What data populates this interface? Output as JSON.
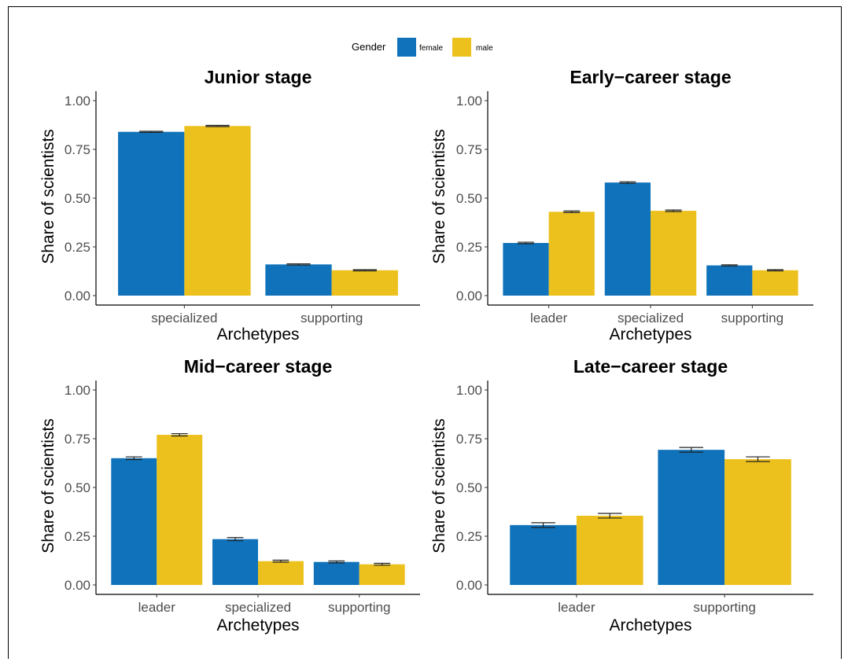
{
  "legend": {
    "title": "Gender",
    "entries": [
      {
        "label": "female",
        "color": "#0F72BA"
      },
      {
        "label": "male",
        "color": "#EDC11D"
      }
    ]
  },
  "chart_data": [
    {
      "type": "bar",
      "title": "Junior stage",
      "xlabel": "Archetypes",
      "ylabel": "Share of scientists",
      "categories": [
        "specialized",
        "supporting"
      ],
      "series": [
        {
          "name": "female",
          "values": [
            0.84,
            0.16
          ],
          "errors": [
            0.003,
            0.003
          ]
        },
        {
          "name": "male",
          "values": [
            0.87,
            0.13
          ],
          "errors": [
            0.003,
            0.003
          ]
        }
      ],
      "ylim": [
        0,
        1
      ],
      "yticks": [
        "0.00",
        "0.25",
        "0.50",
        "0.75",
        "1.00"
      ],
      "grid": false
    },
    {
      "type": "bar",
      "title": "Early−career stage",
      "xlabel": "Archetypes",
      "ylabel": "Share of scientists",
      "categories": [
        "leader",
        "specialized",
        "supporting"
      ],
      "series": [
        {
          "name": "female",
          "values": [
            0.27,
            0.58,
            0.155
          ],
          "errors": [
            0.004,
            0.004,
            0.003
          ]
        },
        {
          "name": "male",
          "values": [
            0.43,
            0.435,
            0.13
          ],
          "errors": [
            0.004,
            0.004,
            0.003
          ]
        }
      ],
      "ylim": [
        0,
        1
      ],
      "yticks": [
        "0.00",
        "0.25",
        "0.50",
        "0.75",
        "1.00"
      ],
      "grid": false
    },
    {
      "type": "bar",
      "title": "Mid−career stage",
      "xlabel": "Archetypes",
      "ylabel": "Share of scientists",
      "categories": [
        "leader",
        "specialized",
        "supporting"
      ],
      "series": [
        {
          "name": "female",
          "values": [
            0.65,
            0.235,
            0.118
          ],
          "errors": [
            0.007,
            0.008,
            0.005
          ]
        },
        {
          "name": "male",
          "values": [
            0.77,
            0.122,
            0.106
          ],
          "errors": [
            0.006,
            0.005,
            0.005
          ]
        }
      ],
      "ylim": [
        0,
        1
      ],
      "yticks": [
        "0.00",
        "0.25",
        "0.50",
        "0.75",
        "1.00"
      ],
      "grid": false
    },
    {
      "type": "bar",
      "title": "Late−career stage",
      "xlabel": "Archetypes",
      "ylabel": "Share of scientists",
      "categories": [
        "leader",
        "supporting"
      ],
      "series": [
        {
          "name": "female",
          "values": [
            0.307,
            0.693
          ],
          "errors": [
            0.012,
            0.012
          ]
        },
        {
          "name": "male",
          "values": [
            0.355,
            0.645
          ],
          "errors": [
            0.012,
            0.012
          ]
        }
      ],
      "ylim": [
        0,
        1
      ],
      "yticks": [
        "0.00",
        "0.25",
        "0.50",
        "0.75",
        "1.00"
      ],
      "grid": false
    }
  ]
}
